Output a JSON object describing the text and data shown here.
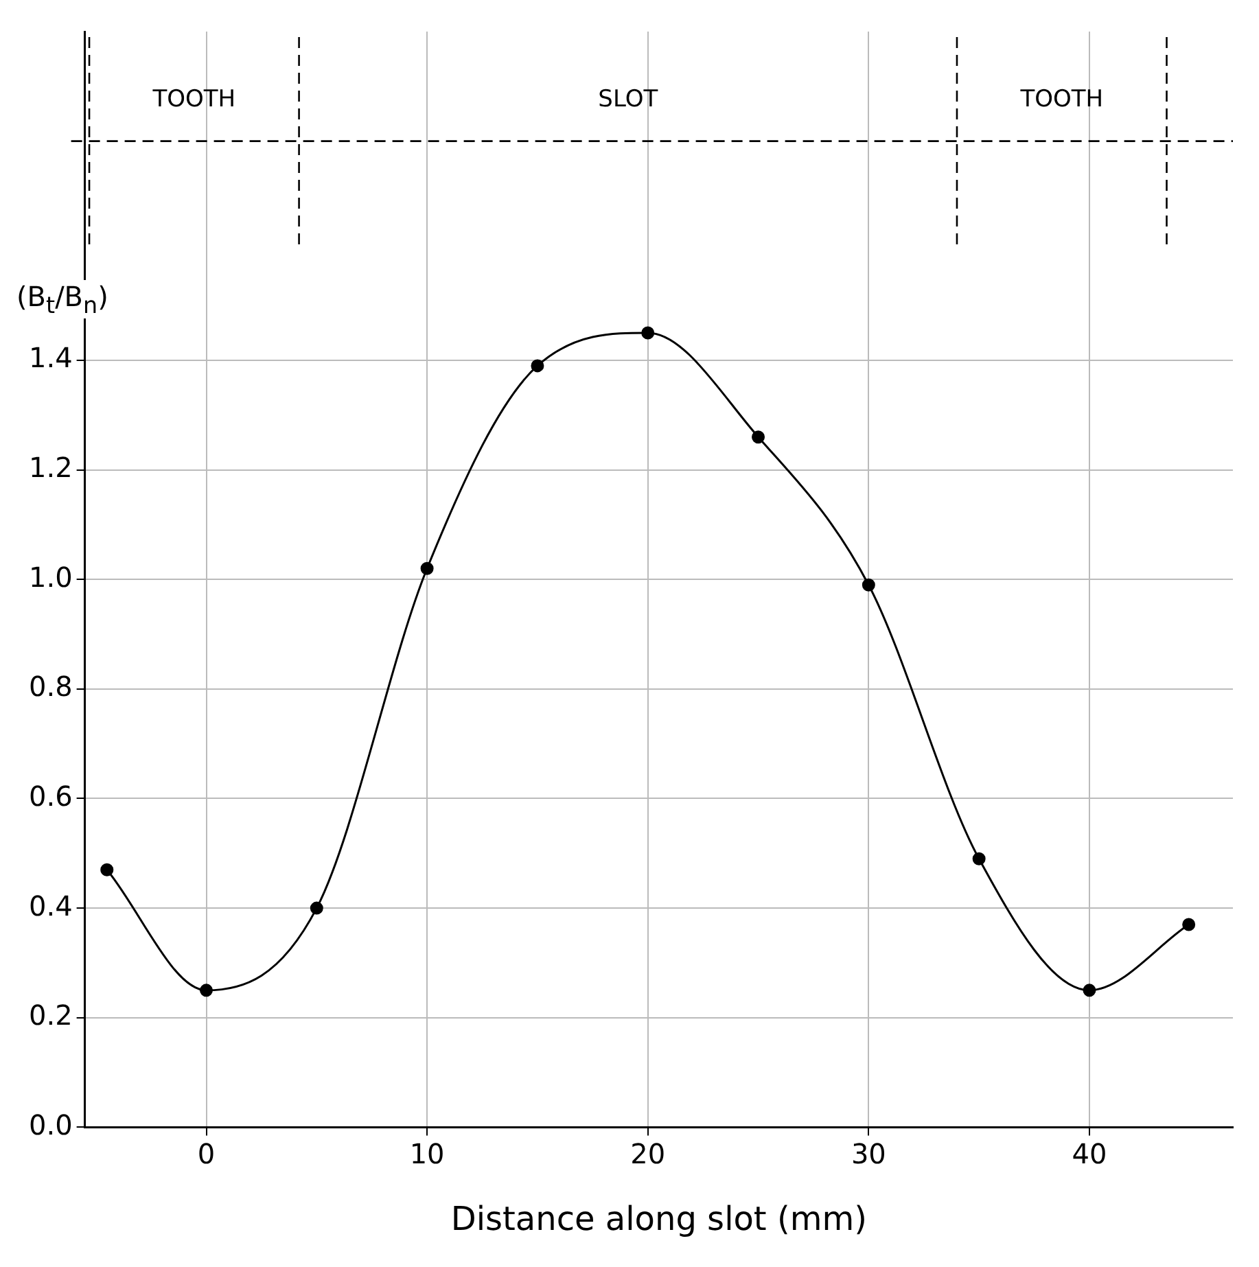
{
  "chart_data": {
    "type": "line",
    "xlabel": "Distance along slot (mm)",
    "ylabel": "(B$_{t}$/B$_{n}$)",
    "x": [
      -4.5,
      0,
      5,
      10,
      15,
      20,
      25,
      30,
      35,
      40,
      44.5
    ],
    "series": [
      {
        "color": "#000000",
        "values": [
          0.47,
          0.25,
          0.4,
          1.02,
          1.39,
          1.45,
          1.26,
          0.99,
          0.49,
          0.25,
          0.37
        ]
      }
    ],
    "xlim": [
      -5.5,
      46.5
    ],
    "xticks": [
      0,
      10,
      20,
      30,
      40
    ],
    "ylim": [
      0,
      2.0
    ],
    "yticks": [
      {
        "value": 0,
        "label": "0.0"
      },
      0.2,
      0.4,
      0.6,
      0.8,
      {
        "value": 1.0,
        "label": "1.0"
      },
      1.2,
      1.4
    ],
    "ref_lines": [
      {
        "axis": "x",
        "value": -5.3,
        "line_style": "dashed"
      },
      {
        "axis": "x",
        "value": 4.2,
        "line_style": "dashed"
      },
      {
        "axis": "x",
        "value": 34,
        "line_style": "dashed"
      },
      {
        "axis": "x",
        "value": 43.5,
        "line_style": "dashed"
      },
      {
        "axis": "y",
        "value": 1.8,
        "line_style": "dashed"
      }
    ],
    "annotations": [
      "TOOTH",
      "SLOT",
      "TOOTH"
    ],
    "grid": true,
    "marker": "circle",
    "line_style": "solid",
    "legend": false
  }
}
